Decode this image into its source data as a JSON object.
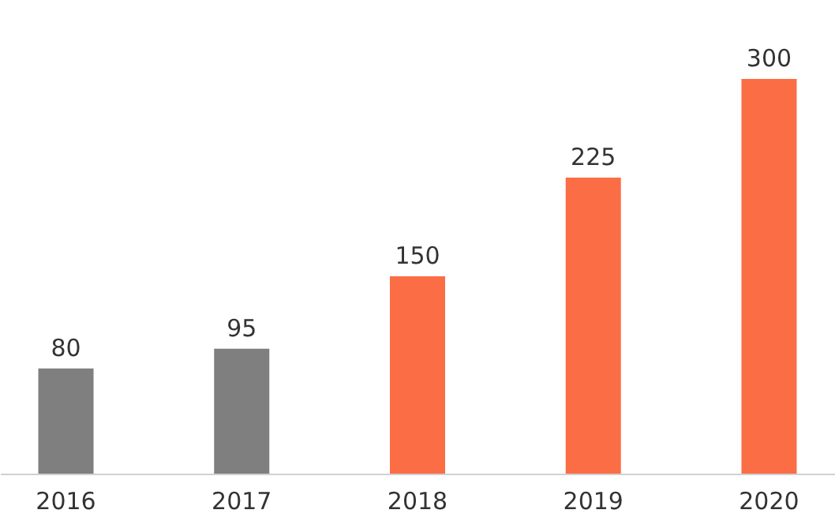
{
  "chart_data": {
    "type": "bar",
    "categories": [
      "2016",
      "2017",
      "2018",
      "2019",
      "2020"
    ],
    "values": [
      80,
      95,
      150,
      225,
      300
    ],
    "colors": [
      "#7f7f7f",
      "#7f7f7f",
      "#fb6d45",
      "#fb6d45",
      "#fb6d45"
    ],
    "data_labels": true,
    "grid": false
  }
}
